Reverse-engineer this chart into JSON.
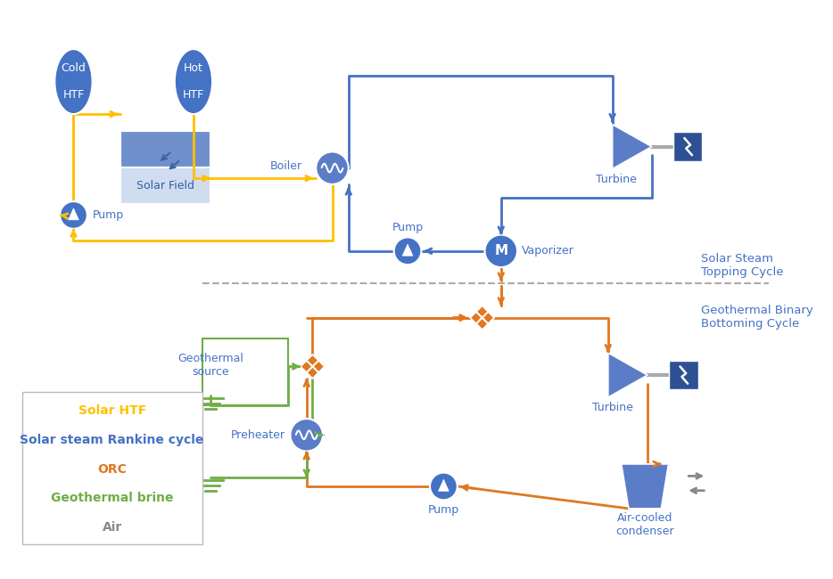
{
  "colors": {
    "yellow": "#FFC000",
    "blue": "#4472C4",
    "orange": "#E07820",
    "green": "#70AD47",
    "gray": "#888888",
    "comp_blue": "#4472C4",
    "comp_blue_mid": "#5B7DC8",
    "comp_blue_dark": "#2E5094",
    "comp_blue_light": "#7090CC",
    "sf_top": "#7090CC",
    "sf_bot": "#D0DCF0",
    "background": "#FFFFFF"
  },
  "legend_items": [
    {
      "label": "Solar HTF",
      "color": "#FFC000"
    },
    {
      "label": "Solar steam Rankine cycle",
      "color": "#4472C4"
    },
    {
      "label": "ORC",
      "color": "#E07820"
    },
    {
      "label": "Geothermal brine",
      "color": "#70AD47"
    },
    {
      "label": "Air",
      "color": "#888888"
    }
  ]
}
